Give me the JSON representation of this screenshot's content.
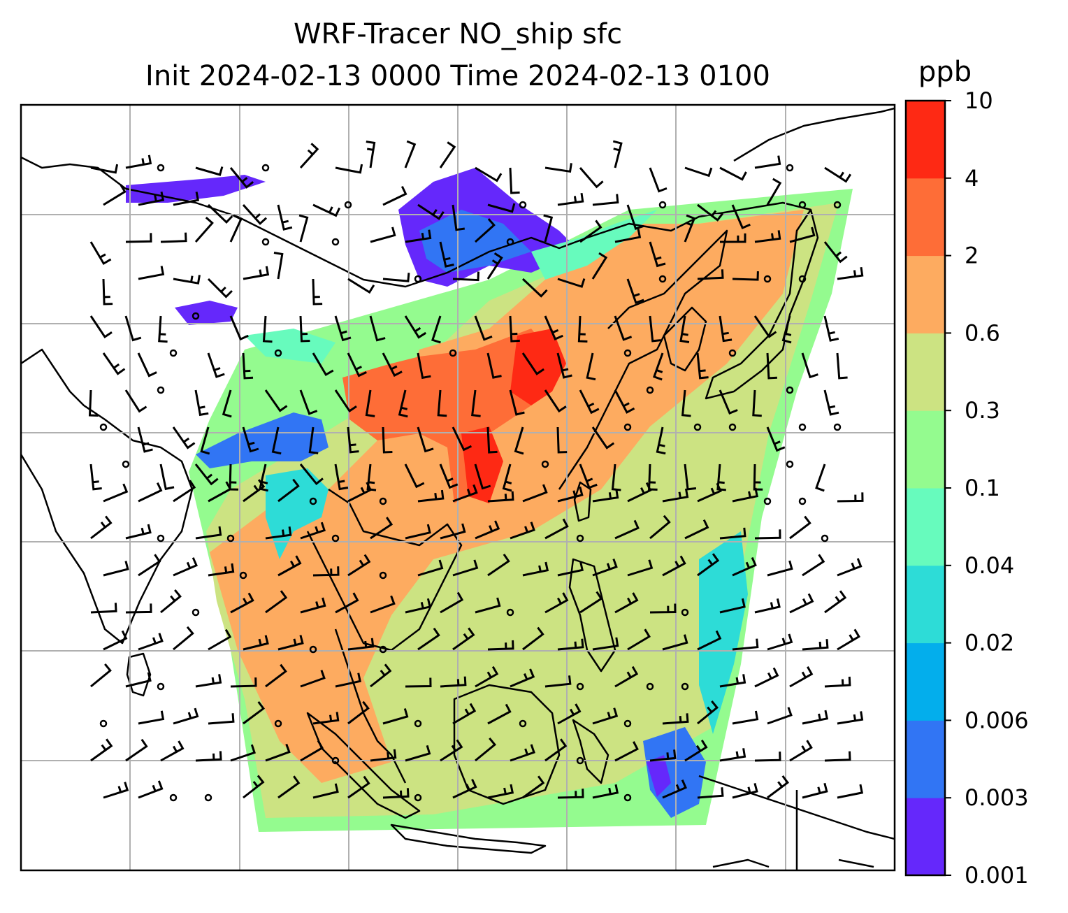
{
  "title_line1": "WRF-Tracer NO_ship sfc",
  "title_line2": "Init 2024-02-13 0000 Time 2024-02-13 0100",
  "colorbar": {
    "unit": "ppb",
    "levels": [
      "0.001",
      "0.003",
      "0.006",
      "0.02",
      "0.04",
      "0.1",
      "0.3",
      "0.6",
      "2",
      "4",
      "10"
    ],
    "colors": [
      "#6528fb",
      "#3175f4",
      "#03aeec",
      "#2ddcd7",
      "#67fbbd",
      "#94fb8f",
      "#cce382",
      "#fdab60",
      "#fe6d37",
      "#fe2914"
    ]
  },
  "map": {
    "colors": {
      "coastline": "#000000",
      "gridline": "#b0b0b0",
      "frame": "#000000"
    },
    "gridlines": "on"
  }
}
